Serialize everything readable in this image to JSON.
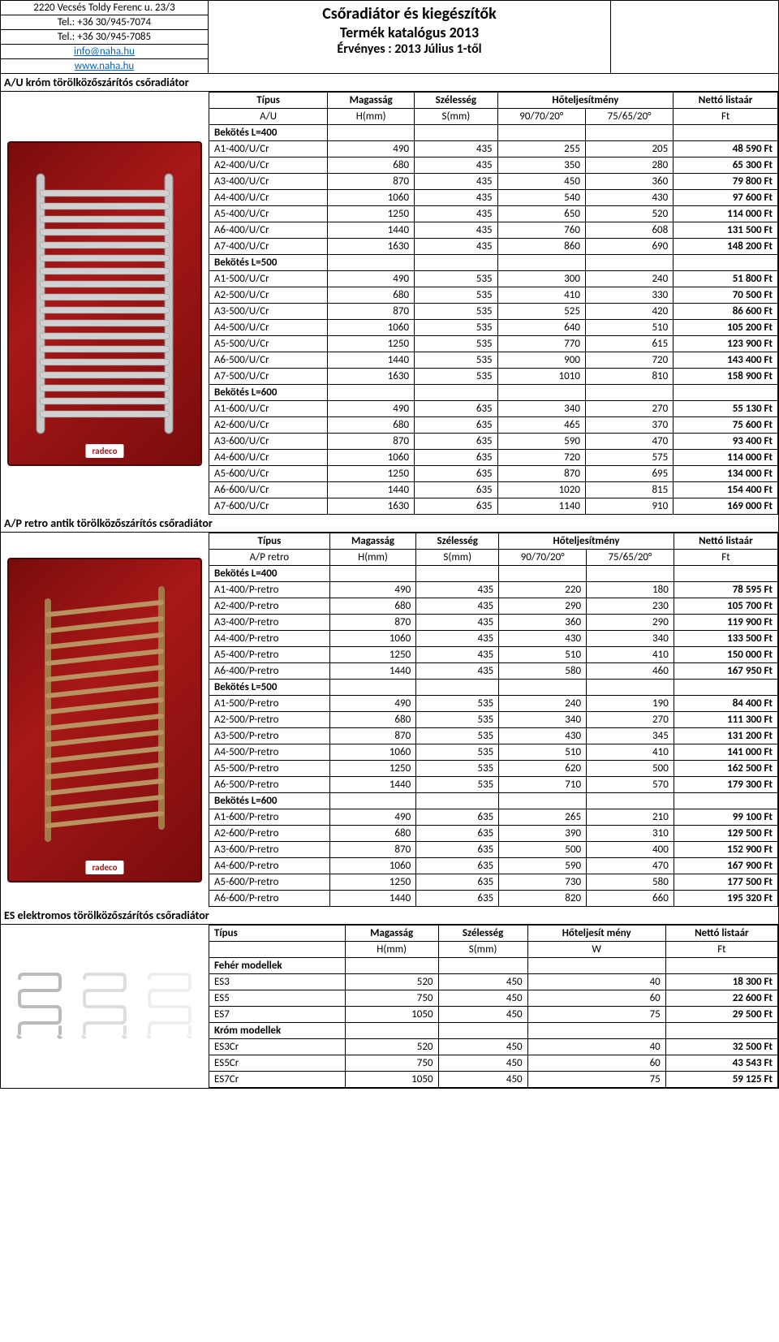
{
  "company": {
    "address": "2220 Vecsés Toldy Ferenc u. 23/3",
    "tel1": "Tel.: +36 30/945-7074",
    "tel2": "Tel.: +36 30/945-7085",
    "email": "info@naha.hu",
    "web": "www.naha.hu"
  },
  "title": {
    "line1": "Csőradiátor és kiegészítők",
    "line2": "Termék katalógus 2013",
    "line3": "Érvényes : 2013 Július 1-től"
  },
  "brand": "radeco",
  "headers": {
    "tipus": "Típus",
    "magassag": "Magasság",
    "szelesseg": "Szélesség",
    "hotelj": "Hőteljesítmény",
    "hotelj_short": "Hőteljesít mény",
    "netto": "Nettó listaár",
    "hmm": "H(mm)",
    "smm": "S(mm)",
    "c1": "90/70/20°",
    "c2": "75/65/20°",
    "w": "W",
    "ft": "Ft"
  },
  "sections": [
    {
      "title": "A/U króm törölközőszárítós csőradiátor",
      "sub": "A/U",
      "image": "chrome",
      "groups": [
        {
          "name": "Bekötés L=400",
          "rows": [
            [
              "A1-400/U/Cr",
              "490",
              "435",
              "255",
              "205",
              "48 590 Ft"
            ],
            [
              "A2-400/U/Cr",
              "680",
              "435",
              "350",
              "280",
              "65 300 Ft"
            ],
            [
              "A3-400/U/Cr",
              "870",
              "435",
              "450",
              "360",
              "79 800 Ft"
            ],
            [
              "A4-400/U/Cr",
              "1060",
              "435",
              "540",
              "430",
              "97 600 Ft"
            ],
            [
              "A5-400/U/Cr",
              "1250",
              "435",
              "650",
              "520",
              "114 000 Ft"
            ],
            [
              "A6-400/U/Cr",
              "1440",
              "435",
              "760",
              "608",
              "131 500 Ft"
            ],
            [
              "A7-400/U/Cr",
              "1630",
              "435",
              "860",
              "690",
              "148 200 Ft"
            ]
          ]
        },
        {
          "name": "Bekötés L=500",
          "rows": [
            [
              "A1-500/U/Cr",
              "490",
              "535",
              "300",
              "240",
              "51 800 Ft"
            ],
            [
              "A2-500/U/Cr",
              "680",
              "535",
              "410",
              "330",
              "70 500 Ft"
            ],
            [
              "A3-500/U/Cr",
              "870",
              "535",
              "525",
              "420",
              "86 600 Ft"
            ],
            [
              "A4-500/U/Cr",
              "1060",
              "535",
              "640",
              "510",
              "105 200 Ft"
            ],
            [
              "A5-500/U/Cr",
              "1250",
              "535",
              "770",
              "615",
              "123 900 Ft"
            ],
            [
              "A6-500/U/Cr",
              "1440",
              "535",
              "900",
              "720",
              "143 400 Ft"
            ],
            [
              "A7-500/U/Cr",
              "1630",
              "535",
              "1010",
              "810",
              "158 900 Ft"
            ]
          ]
        },
        {
          "name": "Bekötés L=600",
          "rows": [
            [
              "A1-600/U/Cr",
              "490",
              "635",
              "340",
              "270",
              "55 130 Ft"
            ],
            [
              "A2-600/U/Cr",
              "680",
              "635",
              "465",
              "370",
              "75 600 Ft"
            ],
            [
              "A3-600/U/Cr",
              "870",
              "635",
              "590",
              "470",
              "93 400 Ft"
            ],
            [
              "A4-600/U/Cr",
              "1060",
              "635",
              "720",
              "575",
              "114 000 Ft"
            ],
            [
              "A5-600/U/Cr",
              "1250",
              "635",
              "870",
              "695",
              "134 000 Ft"
            ],
            [
              "A6-600/U/Cr",
              "1440",
              "635",
              "1020",
              "815",
              "154 400 Ft"
            ],
            [
              "A7-600/U/Cr",
              "1630",
              "635",
              "1140",
              "910",
              "169 000 Ft"
            ]
          ]
        }
      ]
    },
    {
      "title": "A/P retro antik törölközőszárítós csőradiátor",
      "sub": "A/P retro",
      "image": "retro",
      "groups": [
        {
          "name": "Bekötés L=400",
          "rows": [
            [
              "A1-400/P-retro",
              "490",
              "435",
              "220",
              "180",
              "78 595 Ft"
            ],
            [
              "A2-400/P-retro",
              "680",
              "435",
              "290",
              "230",
              "105 700 Ft"
            ],
            [
              "A3-400/P-retro",
              "870",
              "435",
              "360",
              "290",
              "119 900 Ft"
            ],
            [
              "A4-400/P-retro",
              "1060",
              "435",
              "430",
              "340",
              "133 500 Ft"
            ],
            [
              "A5-400/P-retro",
              "1250",
              "435",
              "510",
              "410",
              "150 000 Ft"
            ],
            [
              "A6-400/P-retro",
              "1440",
              "435",
              "580",
              "460",
              "167 950 Ft"
            ]
          ]
        },
        {
          "name": "Bekötés L=500",
          "rows": [
            [
              "A1-500/P-retro",
              "490",
              "535",
              "240",
              "190",
              "84 400 Ft"
            ],
            [
              "A2-500/P-retro",
              "680",
              "535",
              "340",
              "270",
              "111 300 Ft"
            ],
            [
              "A3-500/P-retro",
              "870",
              "535",
              "430",
              "345",
              "131 200 Ft"
            ],
            [
              "A4-500/P-retro",
              "1060",
              "535",
              "510",
              "410",
              "141 000 Ft"
            ],
            [
              "A5-500/P-retro",
              "1250",
              "535",
              "620",
              "500",
              "162 500 Ft"
            ],
            [
              "A6-500/P-retro",
              "1440",
              "535",
              "710",
              "570",
              "179 300 Ft"
            ]
          ]
        },
        {
          "name": "Bekötés L=600",
          "rows": [
            [
              "A1-600/P-retro",
              "490",
              "635",
              "265",
              "210",
              "99 100 Ft"
            ],
            [
              "A2-600/P-retro",
              "680",
              "635",
              "390",
              "310",
              "129 500 Ft"
            ],
            [
              "A3-600/P-retro",
              "870",
              "635",
              "500",
              "400",
              "152 900 Ft"
            ],
            [
              "A4-600/P-retro",
              "1060",
              "635",
              "590",
              "470",
              "167 900 Ft"
            ],
            [
              "A5-600/P-retro",
              "1250",
              "635",
              "730",
              "580",
              "177 500 Ft"
            ],
            [
              "A6-600/P-retro",
              "1440",
              "635",
              "820",
              "660",
              "195 320 Ft"
            ]
          ]
        }
      ]
    }
  ],
  "es_section": {
    "title": "ES elektromos törölközőszárítós csőradiátor",
    "groups": [
      {
        "name": "Fehér modellek",
        "rows": [
          [
            "ES3",
            "520",
            "450",
            "40",
            "18 300 Ft"
          ],
          [
            "ES5",
            "750",
            "450",
            "60",
            "22 600 Ft"
          ],
          [
            "ES7",
            "1050",
            "450",
            "75",
            "29 500 Ft"
          ]
        ]
      },
      {
        "name": "Króm modellek",
        "rows": [
          [
            "ES3Cr",
            "520",
            "450",
            "40",
            "32 500 Ft"
          ],
          [
            "ES5Cr",
            "750",
            "450",
            "60",
            "43 543 Ft"
          ],
          [
            "ES7Cr",
            "1050",
            "450",
            "75",
            "59 125 Ft"
          ]
        ]
      }
    ]
  }
}
